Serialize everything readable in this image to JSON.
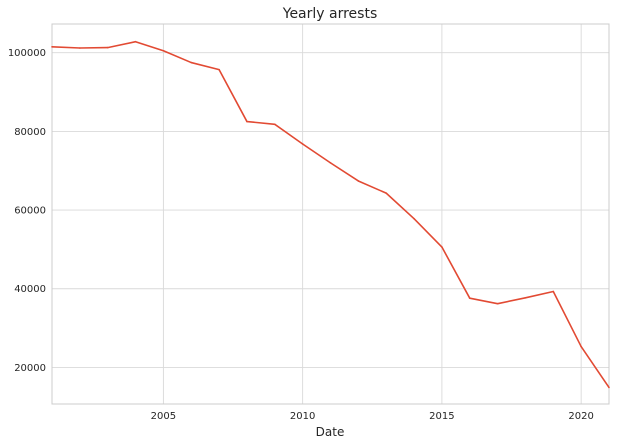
{
  "chart_data": {
    "type": "line",
    "title": "Yearly arrests",
    "xlabel": "Date",
    "ylabel": "",
    "xlim": [
      2001,
      2021
    ],
    "ylim": [
      10700,
      107300
    ],
    "grid": true,
    "x_ticks": [
      2005,
      2010,
      2015,
      2020
    ],
    "y_ticks": [
      20000,
      40000,
      60000,
      80000,
      100000
    ],
    "series": [
      {
        "color": "#e24a33",
        "x": [
          2001,
          2002,
          2003,
          2004,
          2005,
          2006,
          2007,
          2008,
          2009,
          2010,
          2011,
          2012,
          2013,
          2014,
          2015,
          2016,
          2017,
          2018,
          2019,
          2020,
          2021
        ],
        "values": [
          101500,
          101200,
          101300,
          102800,
          100500,
          97500,
          95700,
          82500,
          81800,
          76800,
          72000,
          67400,
          64300,
          57800,
          50600,
          37600,
          36200,
          37700,
          39300,
          25300,
          14900
        ]
      }
    ]
  }
}
